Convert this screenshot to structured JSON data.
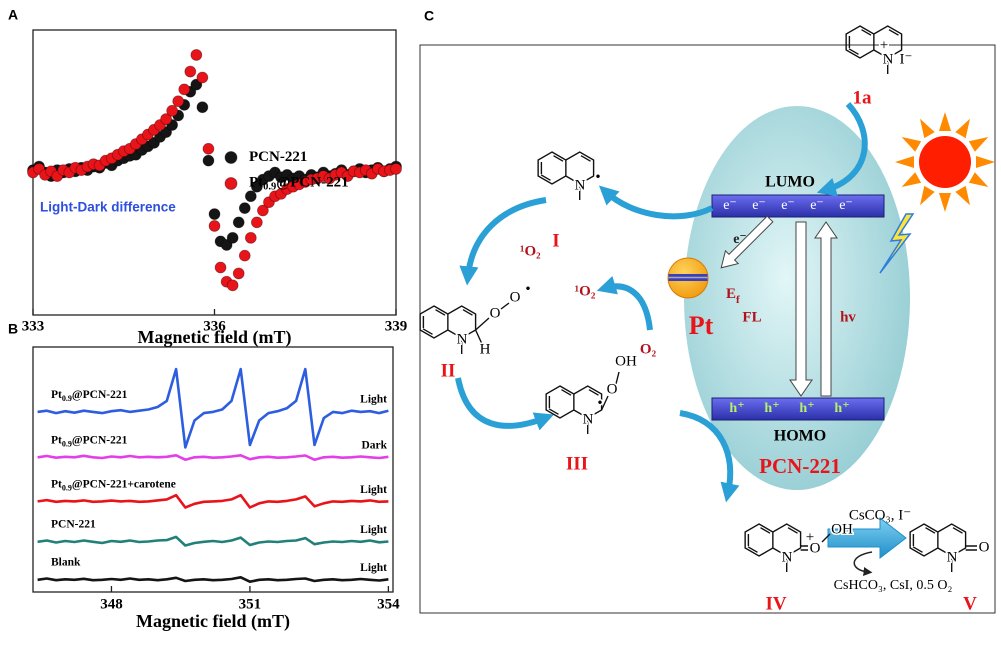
{
  "panel_labels": [
    "A",
    "B",
    "C"
  ],
  "chart_data": [
    {
      "type": "scatter",
      "x": [
        333,
        333.1,
        333.2,
        333.3,
        333.4,
        333.5,
        333.6,
        333.7,
        333.8,
        333.9,
        334,
        334.1,
        334.2,
        334.3,
        334.4,
        334.5,
        334.6,
        334.7,
        334.8,
        334.9,
        335,
        335.1,
        335.2,
        335.3,
        335.4,
        335.5,
        335.6,
        335.7,
        335.8,
        335.9,
        336,
        336.1,
        336.2,
        336.3,
        336.4,
        336.5,
        336.6,
        336.7,
        336.8,
        336.9,
        337,
        337.1,
        337.2,
        337.3,
        337.4,
        337.5,
        337.6,
        337.7,
        337.8,
        337.9,
        338,
        338.1,
        338.2,
        338.3,
        338.4,
        338.5,
        338.6,
        338.7,
        338.8,
        338.9,
        339
      ],
      "series": [
        {
          "name": "PCN-221",
          "color": "#151515",
          "values": [
            0.02,
            0.05,
            0,
            -0.03,
            0.02,
            0,
            0.03,
            0.01,
            0.04,
            0.02,
            0.05,
            0.04,
            0.08,
            0.06,
            0.1,
            0.12,
            0.14,
            0.15,
            0.19,
            0.22,
            0.25,
            0.3,
            0.34,
            0.4,
            0.48,
            0.57,
            0.68,
            0.74,
            0.55,
            0.1,
            -0.35,
            -0.58,
            -0.61,
            -0.55,
            -0.42,
            -0.3,
            -0.2,
            -0.12,
            -0.06,
            -0.03,
            0,
            -0.04,
            -0.02,
            -0.05,
            -0.03,
            -0.06,
            -0.02,
            -0.04,
            0,
            -0.03,
            -0.01,
            0.02,
            -0.02,
            0.01,
            0.03,
            0,
            0.02,
            0.04,
            0.01,
            0.03,
            0.05
          ]
        },
        {
          "name": "Pt0.9@PCN-221",
          "color": "#e8141a",
          "values": [
            0,
            0.03,
            -0.02,
            0.01,
            -0.03,
            0.02,
            0,
            0.04,
            0.02,
            0.05,
            0.07,
            0.06,
            0.1,
            0.12,
            0.15,
            0.18,
            0.2,
            0.24,
            0.28,
            0.32,
            0.36,
            0.4,
            0.45,
            0.52,
            0.6,
            0.7,
            0.85,
            0.99,
            0.8,
            0.2,
            -0.45,
            -0.8,
            -0.92,
            -0.95,
            -0.85,
            -0.7,
            -0.55,
            -0.42,
            -0.32,
            -0.25,
            -0.2,
            -0.18,
            -0.14,
            -0.12,
            -0.1,
            -0.08,
            -0.06,
            -0.05,
            -0.03,
            -0.05,
            -0.02,
            0,
            -0.03,
            0.01,
            0,
            0.02,
            -0.01,
            0.03,
            0.01,
            0.02,
            0.03
          ]
        }
      ],
      "xlabel": "Magnetic field (mT)",
      "xlim": [
        333,
        339
      ],
      "xticks": [
        333,
        336,
        339
      ],
      "ylim": [
        -1.2,
        1.2
      ],
      "annotation": "Light-Dark difference",
      "legend": "center right"
    },
    {
      "type": "line",
      "x": [
        346.4,
        346.6,
        346.8,
        347,
        347.2,
        347.4,
        347.6,
        347.8,
        348,
        348.2,
        348.4,
        348.6,
        348.8,
        349,
        349.2,
        349.4,
        349.6,
        349.8,
        350,
        350.2,
        350.4,
        350.6,
        350.8,
        351,
        351.2,
        351.4,
        351.6,
        351.8,
        352,
        352.2,
        352.4,
        352.6,
        352.8,
        353,
        353.2,
        353.4,
        353.6,
        353.8,
        354
      ],
      "series": [
        {
          "name": "Pt0.9@PCN-221",
          "condition": "Light",
          "color": "#2d5de0",
          "values": [
            7.35,
            7.4,
            7.3,
            7.38,
            7.32,
            7.4,
            7.35,
            7.3,
            7.38,
            7.42,
            7.35,
            7.4,
            7.45,
            7.55,
            7.8,
            9.1,
            5.9,
            7.0,
            7.3,
            7.35,
            7.45,
            7.8,
            9.1,
            6.0,
            7.0,
            7.3,
            7.38,
            7.5,
            7.8,
            9.1,
            6.0,
            7.1,
            7.35,
            7.3,
            7.4,
            7.35,
            7.38,
            7.3,
            7.4
          ]
        },
        {
          "name": "Pt0.9@PCN-221",
          "condition": "Dark",
          "color": "#e43ee8",
          "values": [
            5.5,
            5.55,
            5.48,
            5.52,
            5.5,
            5.56,
            5.5,
            5.47,
            5.53,
            5.5,
            5.55,
            5.5,
            5.52,
            5.5,
            5.52,
            5.58,
            5.4,
            5.5,
            5.52,
            5.48,
            5.5,
            5.53,
            5.58,
            5.42,
            5.5,
            5.52,
            5.48,
            5.5,
            5.53,
            5.57,
            5.4,
            5.5,
            5.52,
            5.48,
            5.5,
            5.53,
            5.5,
            5.47,
            5.52
          ]
        },
        {
          "name": "Pt0.9@PCN-221+carotene",
          "condition": "Light",
          "color": "#e8141a",
          "values": [
            3.7,
            3.75,
            3.68,
            3.72,
            3.7,
            3.74,
            3.68,
            3.7,
            3.73,
            3.7,
            3.72,
            3.68,
            3.7,
            3.74,
            3.78,
            3.95,
            3.45,
            3.6,
            3.68,
            3.7,
            3.72,
            3.78,
            3.95,
            3.45,
            3.62,
            3.7,
            3.68,
            3.72,
            3.78,
            3.9,
            3.5,
            3.62,
            3.7,
            3.68,
            3.72,
            3.7,
            3.74,
            3.68,
            3.7
          ]
        },
        {
          "name": "PCN-221",
          "condition": "Light",
          "color": "#22807a",
          "values": [
            2.05,
            2.1,
            2.02,
            2.08,
            2.04,
            2.1,
            2.05,
            2.0,
            2.08,
            2.05,
            2.1,
            2.04,
            2.06,
            2.1,
            2.12,
            2.25,
            1.9,
            2.0,
            2.05,
            2.08,
            2.04,
            2.1,
            2.22,
            1.92,
            2.02,
            2.06,
            2.04,
            2.08,
            2.1,
            2.2,
            1.95,
            2.02,
            2.06,
            2.04,
            2.08,
            2.05,
            2.1,
            2.03,
            2.06
          ]
        },
        {
          "name": "Blank",
          "condition": "Light",
          "color": "#151515",
          "values": [
            0.5,
            0.55,
            0.48,
            0.52,
            0.5,
            0.54,
            0.48,
            0.5,
            0.53,
            0.5,
            0.55,
            0.5,
            0.52,
            0.48,
            0.52,
            0.58,
            0.45,
            0.5,
            0.52,
            0.48,
            0.5,
            0.53,
            0.6,
            0.42,
            0.5,
            0.52,
            0.48,
            0.5,
            0.53,
            0.55,
            0.45,
            0.5,
            0.52,
            0.48,
            0.5,
            0.53,
            0.5,
            0.47,
            0.52
          ]
        }
      ],
      "xlabel": "Magnetic field (mT)",
      "xlim": [
        346.3,
        354.1
      ],
      "xticks": [
        348,
        351,
        354
      ],
      "ylim": [
        0,
        10
      ]
    }
  ],
  "diagram": {
    "bands": {
      "lumo": "LUMO",
      "homo": "HOMO",
      "framework": "PCN-221",
      "electrons": [
        "e⁻",
        "e⁻",
        "e⁻",
        "e⁻",
        "e⁻"
      ],
      "holes": [
        "h⁺",
        "h⁺",
        "h⁺",
        "h⁺"
      ],
      "fl": "FL",
      "hv": "hv",
      "transfer": "e⁻"
    },
    "pt": {
      "label": "Pt",
      "fermi": {
        "base": "E",
        "sub": "f"
      }
    },
    "oxygen": {
      "step": "¹O₂",
      "singlet": "¹O₂",
      "triplet": "O₂"
    },
    "molecules": [
      {
        "label": "1a",
        "atoms": [
          "N",
          "+",
          "I⁻"
        ]
      },
      {
        "label": "I",
        "atoms": [
          "N",
          "•"
        ]
      },
      {
        "label": "II",
        "atoms": [
          "N",
          "H",
          "O",
          "O",
          "•"
        ]
      },
      {
        "label": "III",
        "atoms": [
          "N",
          "•",
          "O",
          "OH"
        ]
      },
      {
        "label": "IV",
        "atoms": [
          "N",
          "+",
          "O",
          "OH"
        ]
      },
      {
        "label": "V",
        "atoms": [
          "N",
          "O"
        ]
      }
    ],
    "reagents": {
      "above": "CsCO₃, I⁻",
      "below": "CsHCO₃, CsI, 0.5 O₂"
    }
  }
}
